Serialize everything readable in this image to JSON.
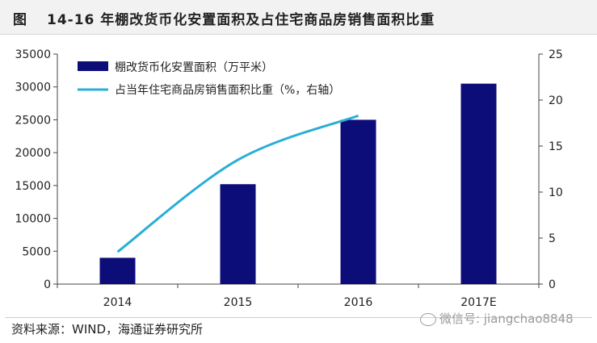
{
  "figure": {
    "label": "图",
    "title": "14-16 年棚改货币化安置面积及占住宅商品房销售面积比重",
    "source": "资料来源：WIND，海通证券研究所",
    "watermark": "微信号: jiangchao8848"
  },
  "chart_data": {
    "type": "bar+line",
    "categories": [
      "2014",
      "2015",
      "2016",
      "2017E"
    ],
    "series": [
      {
        "name": "棚改货币化安置面积（万平米）",
        "type": "bar",
        "axis": "left",
        "color": "#0d0d7a",
        "values": [
          4000,
          15200,
          25000,
          30500
        ]
      },
      {
        "name": "占当年住宅商品房销售面积比重（%，右轴）",
        "type": "line",
        "axis": "right",
        "color": "#2aaed6",
        "values": [
          3.5,
          13.5,
          18.3,
          null
        ]
      }
    ],
    "y_left": {
      "min": 0,
      "max": 35000,
      "ticks": [
        0,
        5000,
        10000,
        15000,
        20000,
        25000,
        30000,
        35000
      ]
    },
    "y_right": {
      "min": 0,
      "max": 25,
      "ticks": [
        0,
        5,
        10,
        15,
        20,
        25
      ]
    },
    "grid": false,
    "legend_position": "top-left"
  }
}
